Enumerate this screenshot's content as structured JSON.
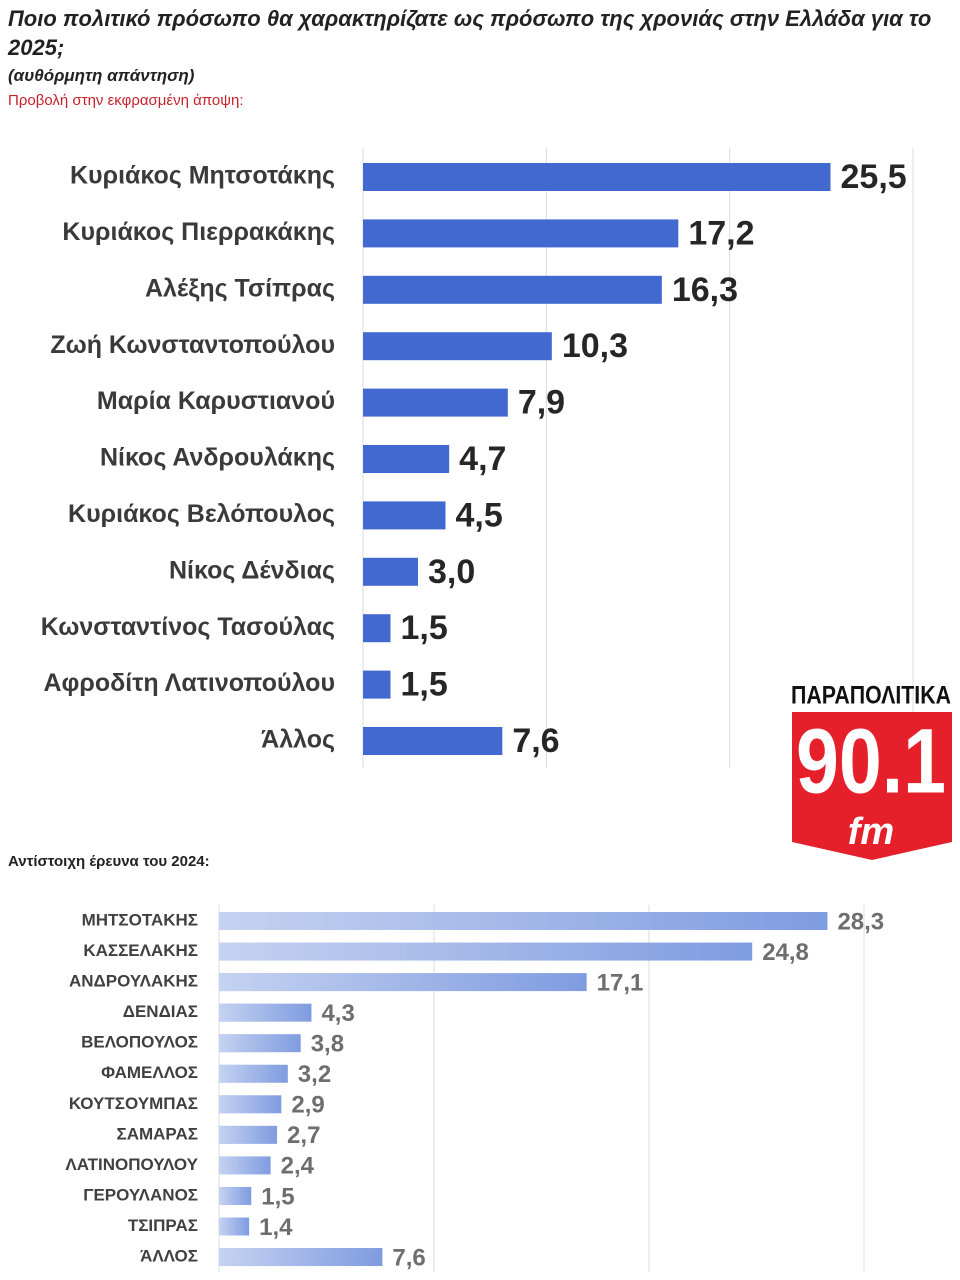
{
  "chart_data": [
    {
      "type": "bar",
      "title": "Ποιο πολιτικό πρόσωπο θα χαρακτηρίζατε ως πρόσωπο της χρονιάς στην Ελλάδα για το 2025;",
      "subtitle": "(αυθόρμητη απάντηση)",
      "note": "Προβολή στην εκφρασμένη άποψη:",
      "categories": [
        "Κυριάκος Μητσοτάκης",
        "Κυριάκος Πιερρακάκης",
        "Αλέξης Τσίπρας",
        "Ζωή Κωνσταντοπούλου",
        "Μαρία Καρυστιανού",
        "Νίκος Ανδρουλάκης",
        "Κυριάκος Βελόπουλος",
        "Νίκος Δένδιας",
        "Κωνσταντίνος Τασούλας",
        "Αφροδίτη Λατινοπούλου",
        "Άλλος"
      ],
      "values": [
        25.5,
        17.2,
        16.3,
        10.3,
        7.9,
        4.7,
        4.5,
        3.0,
        1.5,
        1.5,
        7.6
      ],
      "value_labels": [
        "25,5",
        "17,2",
        "16,3",
        "10,3",
        "7,9",
        "4,7",
        "4,5",
        "3,0",
        "1,5",
        "1,5",
        "7,6"
      ],
      "color": "#4169d0",
      "xlim": [
        0,
        30
      ],
      "xticks": [
        0,
        10,
        20,
        30
      ],
      "grid": true
    },
    {
      "type": "bar",
      "title": "Αντίστοιχη έρευνα του 2024:",
      "categories": [
        "ΜΗΤΣΟΤΑΚΗΣ",
        "ΚΑΣΣΕΛΑΚΗΣ",
        "ΑΝΔΡΟΥΛΑΚΗΣ",
        "ΔΕΝΔΙΑΣ",
        "ΒΕΛΟΠΟΥΛΟΣ",
        "ΦΑΜΕΛΛΟΣ",
        "ΚΟΥΤΣΟΥΜΠΑΣ",
        "ΣΑΜΑΡΑΣ",
        "ΛΑΤΙΝΟΠΟΥΛΟΥ",
        "ΓΕΡΟΥΛΑΝΟΣ",
        "ΤΣΙΠΡΑΣ",
        "ΆΛΛΟΣ"
      ],
      "values": [
        28.3,
        24.8,
        17.1,
        4.3,
        3.8,
        3.2,
        2.9,
        2.7,
        2.4,
        1.5,
        1.4,
        7.6
      ],
      "value_labels": [
        "28,3",
        "24,8",
        "17,1",
        "4,3",
        "3,8",
        "3,2",
        "2,9",
        "2,7",
        "2,4",
        "1,5",
        "1,4",
        "7,6"
      ],
      "color": "#7f9ce0",
      "xlim": [
        0,
        30
      ],
      "xticks": [
        0,
        10,
        20,
        30
      ],
      "grid": true
    }
  ],
  "logo": {
    "name": "ΠΑΡΑΠΟΛΙΤΙΚΑ",
    "frequency": "90.1",
    "unit": "fm"
  }
}
